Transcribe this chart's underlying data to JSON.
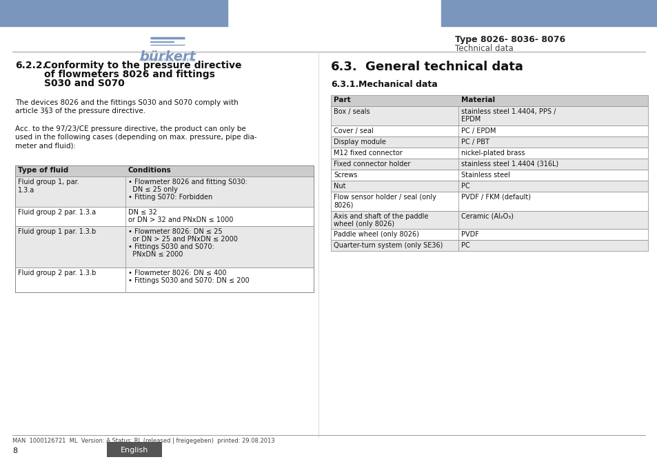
{
  "header_blue": "#7A96BC",
  "header_blue_dark": "#6882A8",
  "logo_blue": "#7A96BC",
  "bg_color": "#FFFFFF",
  "gray_table_header": "#CCCCCC",
  "gray_table_row": "#E8E8E8",
  "footer_gray": "#555555",
  "english_btn_color": "#555555",
  "title_type": "Type 8026- 8036- 8076",
  "title_section": "Technical data",
  "section_left_title": "6.2.2.",
  "section_left_subtitle": "Conformity to the pressure directive\nof flowmeters 8026 and fittings\nS030 and S070",
  "para1": "The devices 8026 and the fittings S030 and S070 comply with\narticle 3§3 of the pressure directive.",
  "para2": "Acc. to the 97/23/CE pressure directive, the product can only be\nused in the following cases (depending on max. pressure, pipe dia-\nmeter and fluid):",
  "left_table_headers": [
    "Type of fluid",
    "Conditions"
  ],
  "left_table_rows": [
    [
      "Fluid group 1, par.\n1.3.a",
      "• Flowmeter 8026 and fitting S030:\n  DN ≤ 25 only\n• Fitting S070: Forbidden"
    ],
    [
      "Fluid group 2 par. 1.3.a",
      "DN ≤ 32\nor DN > 32 and PNxDN ≤ 1000"
    ],
    [
      "Fluid group 1 par. 1.3.b",
      "• Flowmeter 8026: DN ≤ 25\n  or DN > 25 and PNxDN ≤ 2000\n• Fittings S030 and S070:\n  PNxDN ≤ 2000"
    ],
    [
      "Fluid group 2 par. 1.3.b",
      "• Flowmeter 8026: DN ≤ 400\n• Fittings S030 and S070: DN ≤ 200"
    ]
  ],
  "section_right_title": "6.3.",
  "section_right_subtitle": "General technical data",
  "section_right_sub2": "6.3.1.",
  "section_right_sub2_title": "Mechanical data",
  "right_table_headers": [
    "Part",
    "Material"
  ],
  "right_table_rows": [
    [
      "Box / seals",
      "stainless steel 1.4404, PPS /\nEPDM"
    ],
    [
      "Cover / seal",
      "PC / EPDM"
    ],
    [
      "Display module",
      "PC / PBT"
    ],
    [
      "M12 fixed connector",
      "nickel-plated brass"
    ],
    [
      "Fixed connector holder",
      "stainless steel 1.4404 (316L)"
    ],
    [
      "Screws",
      "Stainless steel"
    ],
    [
      "Nut",
      "PC"
    ],
    [
      "Flow sensor holder / seal (only\n8026)",
      "PVDF / FKM (default)"
    ],
    [
      "Axis and shaft of the paddle\nwheel (only 8026)",
      "Ceramic (Al₂O₃)"
    ],
    [
      "Paddle wheel (only 8026)",
      "PVDF"
    ],
    [
      "Quarter-turn system (only SE36)",
      "PC"
    ]
  ],
  "footer_text": "MAN  1000126721  ML  Version: A Status: RL (released | freigegeben)  printed: 29.08.2013",
  "page_number": "8",
  "english_label": "English"
}
